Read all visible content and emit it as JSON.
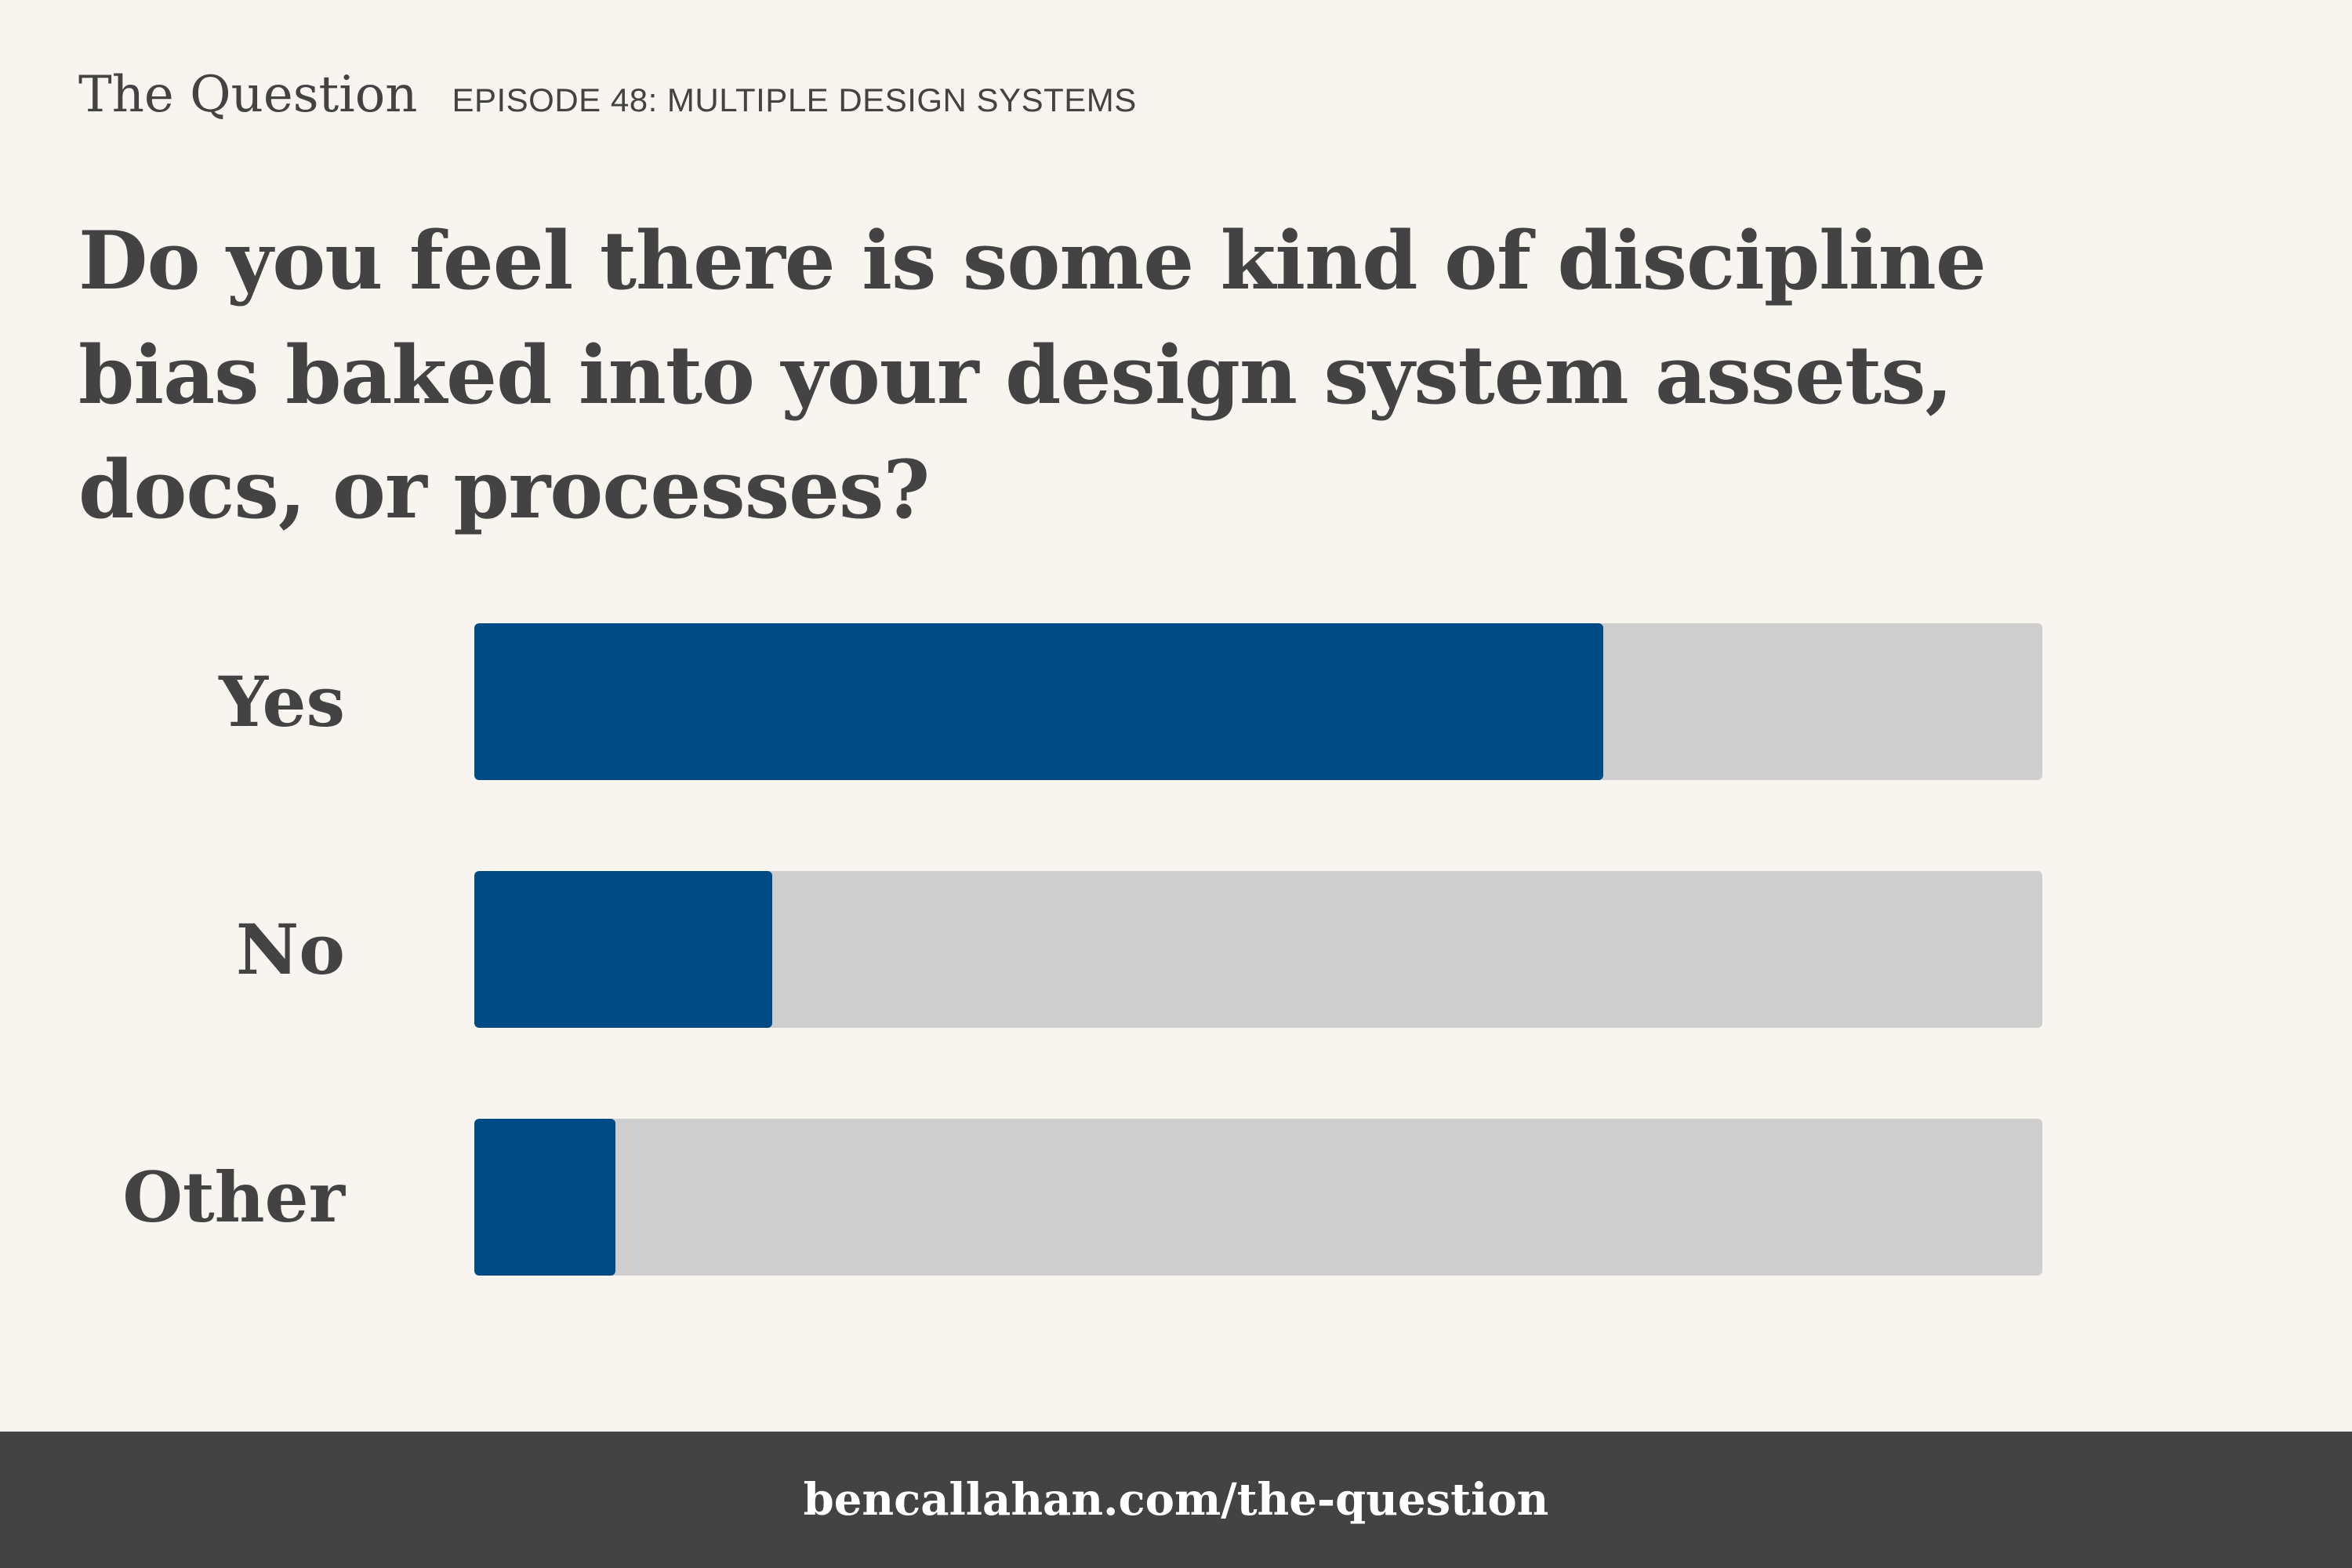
{
  "header": {
    "brand": "The Question",
    "episode": "EPISODE 48: MULTIPLE DESIGN SYSTEMS"
  },
  "question": "Do you feel there is some kind of discipline bias baked into your design system assets, docs, or processes?",
  "footer": {
    "link": "bencallahan.com/the-question"
  },
  "colors": {
    "fill": "#004a85",
    "track": "#cecece",
    "text": "#434343",
    "background": "#f8f4f0",
    "footer": "#434343"
  },
  "chart_data": {
    "type": "bar",
    "orientation": "horizontal",
    "categories": [
      "Yes",
      "No",
      "Other"
    ],
    "values": [
      72,
      19,
      9
    ],
    "unit": "%",
    "xlim": [
      0,
      100
    ],
    "grid": false,
    "title": "",
    "xlabel": "",
    "ylabel": ""
  }
}
